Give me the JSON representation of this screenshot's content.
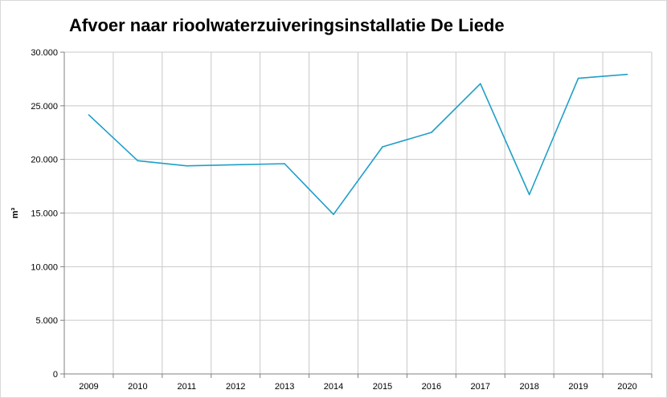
{
  "chart_data": {
    "type": "line",
    "title": "Afvoer naar rioolwaterzuiveringsinstallatie De Liede",
    "xlabel": "",
    "ylabel": "m³",
    "categories": [
      "2009",
      "2010",
      "2011",
      "2012",
      "2013",
      "2014",
      "2015",
      "2016",
      "2017",
      "2018",
      "2019",
      "2020"
    ],
    "series": [
      {
        "values": [
          24150,
          19880,
          19400,
          19500,
          19600,
          14870,
          21170,
          22520,
          27060,
          16720,
          27560,
          27930
        ]
      }
    ],
    "ylim": [
      0,
      30000
    ],
    "yticks": [
      {
        "value": 0,
        "label": "0"
      },
      {
        "value": 5000,
        "label": "5.000"
      },
      {
        "value": 10000,
        "label": "10.000"
      },
      {
        "value": 15000,
        "label": "15.000"
      },
      {
        "value": 20000,
        "label": "20.000"
      },
      {
        "value": 25000,
        "label": "25.000"
      },
      {
        "value": 30000,
        "label": "30.000"
      }
    ],
    "grid": true,
    "legend": "none",
    "line_color": "#1f9fc7",
    "grid_color": "#c8c8c8"
  }
}
